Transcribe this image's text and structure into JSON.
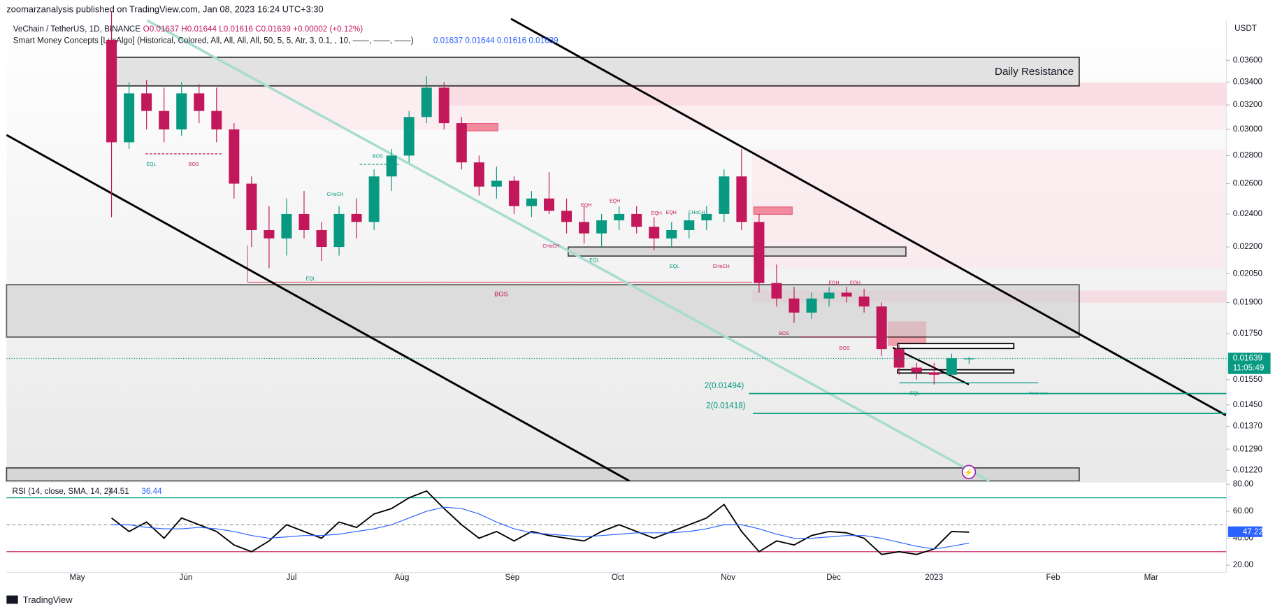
{
  "chart_data": {
    "type": "candlestick",
    "header": "zoomarzanalysis published on TradingView.com, Jan 08, 2023 16:24 UTC+3:30",
    "title": "VeChain / TetherUS, 1D, BINANCE",
    "ohlc_legend": "O0.01637 H0.01644 L0.01616 C0.01639 +0.00002 (+0.12%)",
    "indicator_legend": "Smart Money Concepts [LuxAlgo] (Historical, Colored, All, All, All, All, 50, 5, 5, Atr, 3, 0.1, , 10, ——, ——, ——)",
    "indicator_values": "0.01637  0.01644  0.01616  0.01639",
    "currency": "USDT",
    "price_tag": "0.01639",
    "countdown": "11:05:49",
    "footer": "TradingView",
    "log_scale": true,
    "up_color": "#089981",
    "down_color": "#c2185b",
    "categories": [
      null,
      null,
      null,
      null,
      null,
      null,
      null,
      null,
      null,
      null,
      null,
      null,
      null,
      null,
      null,
      null,
      null,
      null,
      null,
      null,
      null,
      null,
      null,
      null,
      null,
      null,
      null,
      null,
      null,
      null,
      null,
      null,
      null,
      null,
      null,
      null,
      null,
      null,
      null,
      null,
      null,
      null,
      null,
      null,
      null,
      null,
      null,
      null,
      null,
      null
    ],
    "values": [
      [
        0.038,
        0.041,
        0.0238,
        0.029
      ],
      [
        0.029,
        0.034,
        0.0285,
        0.033
      ],
      [
        0.033,
        0.0342,
        0.03,
        0.0315
      ],
      [
        0.0315,
        0.0335,
        0.029,
        0.03
      ],
      [
        0.03,
        0.034,
        0.0295,
        0.033
      ],
      [
        0.033,
        0.0338,
        0.0305,
        0.0315
      ],
      [
        0.0315,
        0.0335,
        0.029,
        0.03
      ],
      [
        0.03,
        0.0305,
        0.025,
        0.026
      ],
      [
        0.026,
        0.0265,
        0.022,
        0.023
      ],
      [
        0.023,
        0.0245,
        0.0208,
        0.0225
      ],
      [
        0.0225,
        0.025,
        0.0215,
        0.024
      ],
      [
        0.024,
        0.0255,
        0.0225,
        0.023
      ],
      [
        0.023,
        0.0235,
        0.0212,
        0.022
      ],
      [
        0.022,
        0.0245,
        0.0215,
        0.024
      ],
      [
        0.024,
        0.025,
        0.0225,
        0.0235
      ],
      [
        0.0235,
        0.027,
        0.023,
        0.0265
      ],
      [
        0.0265,
        0.0285,
        0.0255,
        0.028
      ],
      [
        0.028,
        0.0315,
        0.0275,
        0.031
      ],
      [
        0.031,
        0.0345,
        0.0305,
        0.0335
      ],
      [
        0.0335,
        0.034,
        0.03,
        0.0305
      ],
      [
        0.0305,
        0.031,
        0.027,
        0.0275
      ],
      [
        0.0275,
        0.028,
        0.0252,
        0.0258
      ],
      [
        0.0258,
        0.0272,
        0.025,
        0.0262
      ],
      [
        0.0262,
        0.0265,
        0.024,
        0.0245
      ],
      [
        0.0245,
        0.0255,
        0.0238,
        0.025
      ],
      [
        0.025,
        0.0268,
        0.024,
        0.0242
      ],
      [
        0.0242,
        0.025,
        0.0228,
        0.0235
      ],
      [
        0.0235,
        0.0245,
        0.0222,
        0.0228
      ],
      [
        0.0228,
        0.024,
        0.022,
        0.0236
      ],
      [
        0.0236,
        0.0245,
        0.023,
        0.024
      ],
      [
        0.024,
        0.0245,
        0.0228,
        0.0232
      ],
      [
        0.0232,
        0.0238,
        0.0218,
        0.0225
      ],
      [
        0.0225,
        0.0235,
        0.022,
        0.023
      ],
      [
        0.023,
        0.024,
        0.0225,
        0.0236
      ],
      [
        0.0236,
        0.0245,
        0.023,
        0.024
      ],
      [
        0.024,
        0.027,
        0.0235,
        0.0265
      ],
      [
        0.0265,
        0.0285,
        0.023,
        0.0235
      ],
      [
        0.0235,
        0.024,
        0.0195,
        0.02
      ],
      [
        0.02,
        0.021,
        0.0188,
        0.0192
      ],
      [
        0.0192,
        0.0198,
        0.018,
        0.0185
      ],
      [
        0.0185,
        0.0195,
        0.0182,
        0.0192
      ],
      [
        0.0192,
        0.0198,
        0.0188,
        0.0195
      ],
      [
        0.0195,
        0.0198,
        0.019,
        0.0193
      ],
      [
        0.0193,
        0.0197,
        0.0185,
        0.0188
      ],
      [
        0.0188,
        0.019,
        0.0165,
        0.0168
      ],
      [
        0.0168,
        0.017,
        0.0157,
        0.016
      ],
      [
        0.016,
        0.0162,
        0.0155,
        0.0158
      ],
      [
        0.0158,
        0.0162,
        0.0153,
        0.0157
      ],
      [
        0.0157,
        0.0166,
        0.0156,
        0.0164
      ],
      [
        0.01637,
        0.01644,
        0.01616,
        0.01639
      ]
    ],
    "xlim": [
      -6,
      63.7
    ],
    "xticks": [
      {
        "value": -1.96,
        "label": "May"
      },
      {
        "value": 4.25,
        "label": "Jun"
      },
      {
        "value": 10.28,
        "label": "Jul"
      },
      {
        "value": 16.59,
        "label": "Aug"
      },
      {
        "value": 22.9,
        "label": "Sep"
      },
      {
        "value": 28.93,
        "label": "Oct"
      },
      {
        "value": 35.23,
        "label": "Nov"
      },
      {
        "value": 41.26,
        "label": "Dec"
      },
      {
        "value": 47.0,
        "label": "2023"
      },
      {
        "value": 53.8,
        "label": "Feb"
      },
      {
        "value": 59.4,
        "label": "Mar"
      }
    ],
    "ylim": [
      0.01186,
      0.04
    ],
    "yticks": [
      {
        "value": 0.036,
        "label": "0.03600"
      },
      {
        "value": 0.034,
        "label": "0.03400"
      },
      {
        "value": 0.032,
        "label": "0.03200"
      },
      {
        "value": 0.03,
        "label": "0.03000"
      },
      {
        "value": 0.028,
        "label": "0.02800"
      },
      {
        "value": 0.026,
        "label": "0.02600"
      },
      {
        "value": 0.024,
        "label": "0.02400"
      },
      {
        "value": 0.022,
        "label": "0.02200"
      },
      {
        "value": 0.0205,
        "label": "0.02050"
      },
      {
        "value": 0.019,
        "label": "0.01900"
      },
      {
        "value": 0.0175,
        "label": "0.01750"
      },
      {
        "value": 0.0155,
        "label": "0.01550"
      },
      {
        "value": 0.0145,
        "label": "0.01450"
      },
      {
        "value": 0.0137,
        "label": "0.01370"
      },
      {
        "value": 0.0129,
        "label": "0.01290"
      },
      {
        "value": 0.0122,
        "label": "0.01220"
      }
    ],
    "levels": [
      {
        "label": "2(0.01494)",
        "value": 0.01494,
        "color": "#089981"
      },
      {
        "label": "2(0.01418)",
        "value": 0.01418,
        "color": "#089981"
      }
    ],
    "annotations": [
      "Daily Resistance",
      "BOS",
      "BOS",
      "EQL",
      "BOS",
      "CHoCH",
      "EQL",
      "EQH",
      "EQH",
      "EQH",
      "EQH",
      "CHoCH",
      "CHoCH",
      "EQL",
      "EQL",
      "CHoCH",
      "BOS",
      "EQH",
      "EQH",
      "BOS",
      "EQL",
      "Weak Low"
    ],
    "rsi": {
      "legend": "RSI (14, close, SMA, 14, 2)",
      "ylim": [
        14.5,
        81.2
      ],
      "yticks": [
        {
          "value": 80,
          "label": "80.00"
        },
        {
          "value": 60,
          "label": "60.00"
        },
        {
          "value": 40,
          "label": "40.00"
        },
        {
          "value": 20,
          "label": "20.00"
        }
      ],
      "bands": [
        {
          "value": 70,
          "color": "#089981"
        },
        {
          "value": 50,
          "color": "#999999"
        },
        {
          "value": 30,
          "color": "#c2185b"
        }
      ],
      "tag": "47.22",
      "series": [
        {
          "name": "44.51",
          "color": "#000000",
          "values": [
            55,
            45,
            52,
            40,
            55,
            50,
            45,
            35,
            30,
            38,
            50,
            45,
            40,
            52,
            48,
            58,
            62,
            70,
            75,
            62,
            50,
            40,
            45,
            38,
            45,
            42,
            40,
            38,
            45,
            50,
            45,
            40,
            45,
            50,
            55,
            65,
            45,
            30,
            38,
            35,
            42,
            45,
            44,
            40,
            28,
            30,
            28,
            32,
            45,
            44.51
          ]
        },
        {
          "name": "36.44",
          "color": "#2962ff",
          "values": [
            50,
            50,
            48,
            47,
            47,
            48,
            47,
            45,
            42,
            40,
            41,
            42,
            42,
            43,
            45,
            47,
            50,
            55,
            60,
            63,
            62,
            58,
            52,
            47,
            44,
            43,
            42,
            41,
            42,
            43,
            44,
            44,
            44,
            45,
            47,
            50,
            50,
            47,
            43,
            40,
            40,
            41,
            42,
            42,
            40,
            37,
            34,
            32,
            34,
            36.44
          ]
        }
      ]
    }
  }
}
